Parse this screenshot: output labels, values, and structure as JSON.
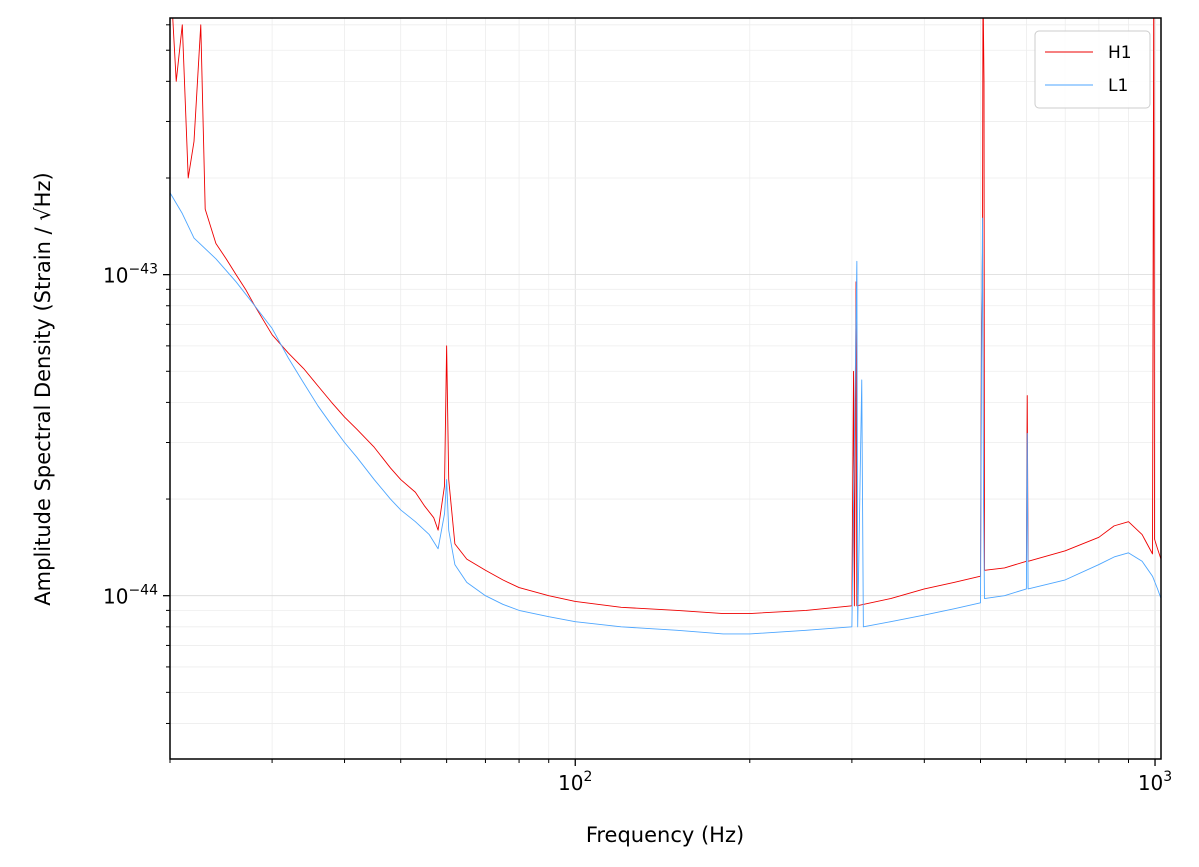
{
  "chart_data": {
    "type": "line",
    "title": "",
    "xlabel": "Frequency (Hz)",
    "ylabel": "Amplitude Spectral Density (Strain / √Hz)",
    "x_scale": "log",
    "y_scale": "log",
    "xlim": [
      20,
      1024
    ],
    "ylim": [
      3.1e-45,
      6.3e-43
    ],
    "x_major_ticks": [
      {
        "value": 100,
        "base": "10",
        "exp": "2"
      },
      {
        "value": 1000,
        "base": "10",
        "exp": "3"
      }
    ],
    "y_major_ticks": [
      {
        "value": 1e-44,
        "base": "10",
        "exp": "−44"
      },
      {
        "value": 1e-43,
        "base": "10",
        "exp": "−43"
      }
    ],
    "grid": true,
    "legend": {
      "placement": "top-right",
      "entries": [
        "H1",
        "L1"
      ]
    },
    "series": [
      {
        "name": "H1",
        "color": "#ee0000",
        "points": [
          [
            20,
            9e-43
          ],
          [
            20.5,
            4e-43
          ],
          [
            21,
            6e-43
          ],
          [
            21.5,
            2e-43
          ],
          [
            22,
            2.6e-43
          ],
          [
            22.6,
            6e-43
          ],
          [
            23,
            1.6e-43
          ],
          [
            24,
            1.25e-43
          ],
          [
            25,
            1.12e-43
          ],
          [
            26,
            1e-43
          ],
          [
            27,
            9e-44
          ],
          [
            28,
            8e-44
          ],
          [
            29,
            7.2e-44
          ],
          [
            30,
            6.5e-44
          ],
          [
            32,
            5.7e-44
          ],
          [
            34,
            5.1e-44
          ],
          [
            36,
            4.5e-44
          ],
          [
            38,
            4e-44
          ],
          [
            40,
            3.6e-44
          ],
          [
            42,
            3.3e-44
          ],
          [
            45,
            2.9e-44
          ],
          [
            48,
            2.5e-44
          ],
          [
            50,
            2.3e-44
          ],
          [
            53,
            2.1e-44
          ],
          [
            55,
            1.9e-44
          ],
          [
            57,
            1.75e-44
          ],
          [
            58,
            1.6e-44
          ],
          [
            59.5,
            2.2e-44
          ],
          [
            60,
            6e-44
          ],
          [
            60.5,
            2.3e-44
          ],
          [
            62,
            1.45e-44
          ],
          [
            65,
            1.3e-44
          ],
          [
            70,
            1.2e-44
          ],
          [
            75,
            1.12e-44
          ],
          [
            80,
            1.06e-44
          ],
          [
            90,
            1e-44
          ],
          [
            100,
            9.6e-45
          ],
          [
            120,
            9.2e-45
          ],
          [
            150,
            9e-45
          ],
          [
            180,
            8.8e-45
          ],
          [
            200,
            8.8e-45
          ],
          [
            250,
            9e-45
          ],
          [
            300,
            9.3e-45
          ],
          [
            302,
            5e-44
          ],
          [
            303,
            9.3e-45
          ],
          [
            305,
            9.5e-44
          ],
          [
            306,
            9.3e-45
          ],
          [
            350,
            9.8e-45
          ],
          [
            400,
            1.05e-44
          ],
          [
            450,
            1.1e-44
          ],
          [
            500,
            1.15e-44
          ],
          [
            502,
            7e-44
          ],
          [
            504,
            1.2e-43
          ],
          [
            505,
            8e-43
          ],
          [
            507,
            4e-43
          ],
          [
            508,
            1.2e-44
          ],
          [
            550,
            1.22e-44
          ],
          [
            600,
            1.28e-44
          ],
          [
            602,
            4.2e-44
          ],
          [
            604,
            1.28e-44
          ],
          [
            700,
            1.38e-44
          ],
          [
            800,
            1.52e-44
          ],
          [
            850,
            1.65e-44
          ],
          [
            900,
            1.7e-44
          ],
          [
            950,
            1.55e-44
          ],
          [
            990,
            1.35e-44
          ],
          [
            995,
            9e-43
          ],
          [
            998,
            1.5e-44
          ],
          [
            1010,
            1.4e-44
          ],
          [
            1024,
            1.3e-44
          ]
        ]
      },
      {
        "name": "L1",
        "color": "#4da6ff",
        "points": [
          [
            20,
            1.8e-43
          ],
          [
            21,
            1.55e-43
          ],
          [
            22,
            1.3e-43
          ],
          [
            24,
            1.12e-43
          ],
          [
            26,
            9.5e-44
          ],
          [
            28,
            8e-44
          ],
          [
            30,
            6.8e-44
          ],
          [
            32,
            5.5e-44
          ],
          [
            34,
            4.6e-44
          ],
          [
            36,
            3.9e-44
          ],
          [
            38,
            3.4e-44
          ],
          [
            40,
            3e-44
          ],
          [
            42,
            2.7e-44
          ],
          [
            45,
            2.3e-44
          ],
          [
            48,
            2e-44
          ],
          [
            50,
            1.85e-44
          ],
          [
            53,
            1.7e-44
          ],
          [
            56,
            1.55e-44
          ],
          [
            58,
            1.4e-44
          ],
          [
            59.5,
            1.8e-44
          ],
          [
            60,
            2.3e-44
          ],
          [
            60.5,
            1.6e-44
          ],
          [
            62,
            1.25e-44
          ],
          [
            65,
            1.1e-44
          ],
          [
            70,
            1e-44
          ],
          [
            75,
            9.4e-45
          ],
          [
            80,
            9e-45
          ],
          [
            90,
            8.6e-45
          ],
          [
            100,
            8.3e-45
          ],
          [
            120,
            8e-45
          ],
          [
            150,
            7.8e-45
          ],
          [
            180,
            7.6e-45
          ],
          [
            200,
            7.6e-45
          ],
          [
            250,
            7.8e-45
          ],
          [
            300,
            8e-45
          ],
          [
            306,
            1.1e-43
          ],
          [
            307,
            8e-45
          ],
          [
            312,
            4.7e-44
          ],
          [
            314,
            8e-45
          ],
          [
            350,
            8.3e-45
          ],
          [
            400,
            8.7e-45
          ],
          [
            450,
            9.1e-45
          ],
          [
            500,
            9.5e-45
          ],
          [
            502,
            5e-44
          ],
          [
            504,
            1.5e-43
          ],
          [
            506,
            2e-44
          ],
          [
            508,
            9.8e-45
          ],
          [
            550,
            1e-44
          ],
          [
            600,
            1.05e-44
          ],
          [
            602,
            3.2e-44
          ],
          [
            604,
            1.05e-44
          ],
          [
            700,
            1.12e-44
          ],
          [
            800,
            1.25e-44
          ],
          [
            850,
            1.32e-44
          ],
          [
            900,
            1.36e-44
          ],
          [
            950,
            1.28e-44
          ],
          [
            990,
            1.15e-44
          ],
          [
            1010,
            1.05e-44
          ],
          [
            1024,
            9.8e-45
          ]
        ]
      }
    ]
  }
}
